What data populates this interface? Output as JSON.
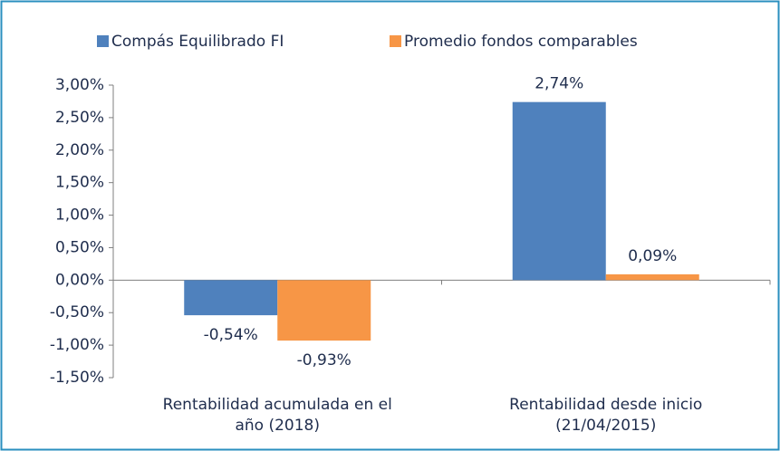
{
  "chart_data": {
    "type": "bar",
    "categories": [
      "Rentabilidad acumulada  en el\naño (2018)",
      "Rentabilidad desde inicio\n(21/04/2015)"
    ],
    "series": [
      {
        "name": "Compás Equilibrado FI",
        "color": "#4f81bd",
        "values": [
          -0.54,
          2.74
        ],
        "value_labels": [
          "-0,54%",
          "2,74%"
        ]
      },
      {
        "name": "Promedio fondos comparables",
        "color": "#f79646",
        "values": [
          -0.93,
          0.09
        ],
        "value_labels": [
          "-0,93%",
          "0,09%"
        ]
      }
    ],
    "ylim": [
      -1.5,
      3
    ],
    "yticks": [
      {
        "value": 3,
        "label": "3,00%"
      },
      {
        "value": 2.5,
        "label": "2,50%"
      },
      {
        "value": 2,
        "label": "2,00%"
      },
      {
        "value": 1.5,
        "label": "1,50%"
      },
      {
        "value": 1,
        "label": "1,00%"
      },
      {
        "value": 0.5,
        "label": "0,50%"
      },
      {
        "value": 0,
        "label": "0,00%"
      },
      {
        "value": -0.5,
        "label": "-0,50%"
      },
      {
        "value": -1,
        "label": "-1,00%"
      },
      {
        "value": -1.5,
        "label": "-1,50%"
      }
    ],
    "legend": "top"
  }
}
